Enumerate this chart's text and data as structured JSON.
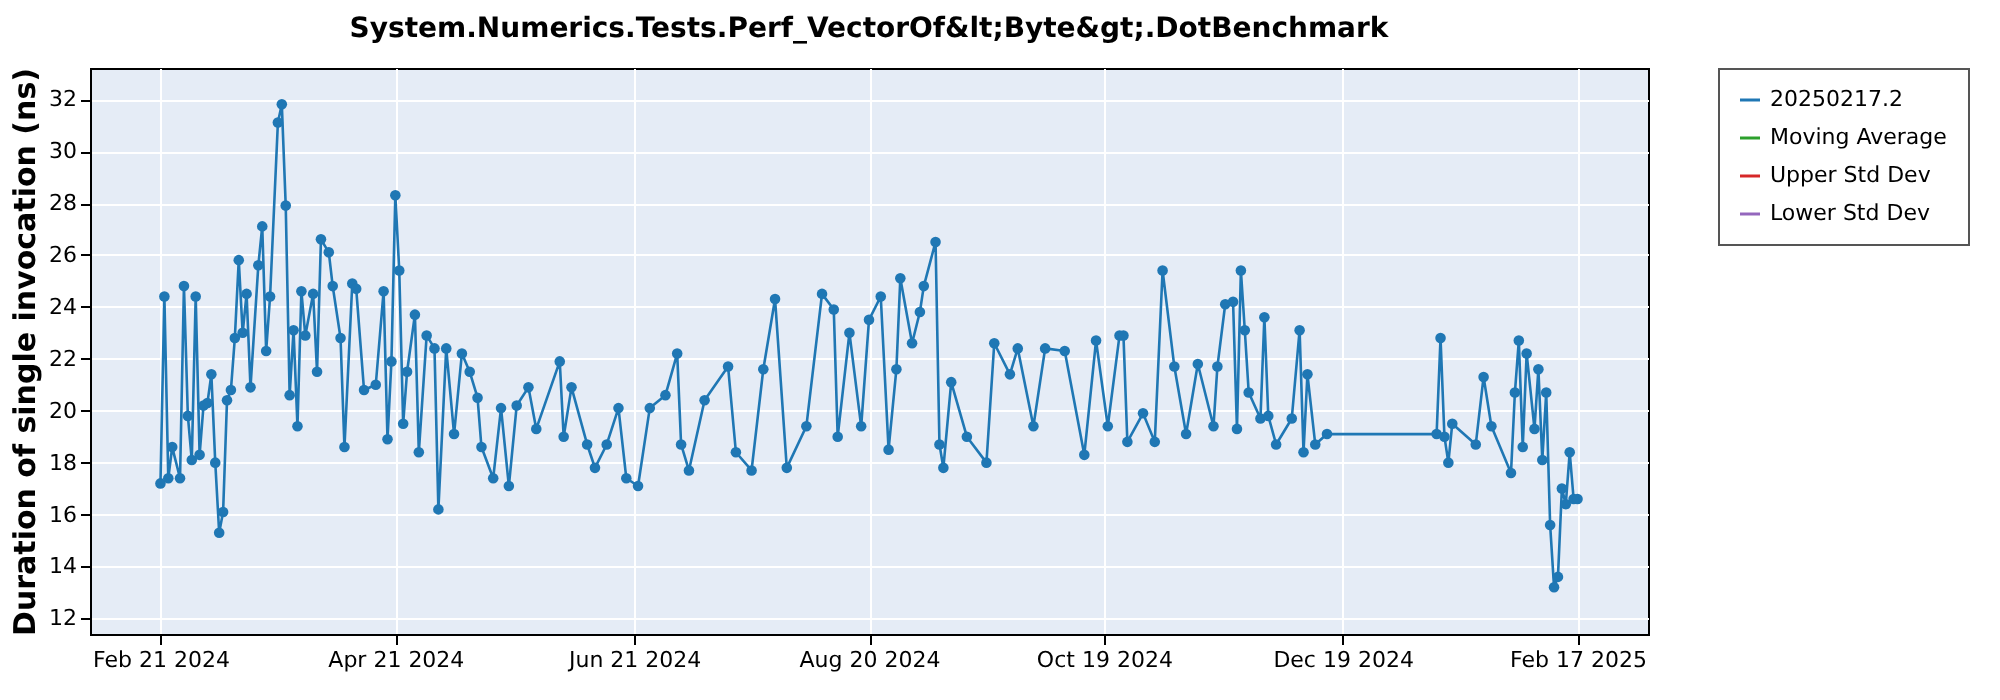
{
  "chart_data": {
    "type": "line",
    "title": "System.Numerics.Tests.Perf_VectorOf&lt;Byte&gt;.DotBenchmark",
    "ylabel": "Duration of single invocation (ns)",
    "x": [
      "2024-02-21",
      "2024-02-22",
      "2024-02-23",
      "2024-02-24",
      "2024-02-26",
      "2024-02-27",
      "2024-02-28",
      "2024-02-29",
      "2024-03-01",
      "2024-03-02",
      "2024-03-03",
      "2024-03-04",
      "2024-03-05",
      "2024-03-06",
      "2024-03-07",
      "2024-03-08",
      "2024-03-09",
      "2024-03-10",
      "2024-03-11",
      "2024-03-12",
      "2024-03-13",
      "2024-03-14",
      "2024-03-15",
      "2024-03-17",
      "2024-03-18",
      "2024-03-19",
      "2024-03-20",
      "2024-03-22",
      "2024-03-23",
      "2024-03-24",
      "2024-03-25",
      "2024-03-26",
      "2024-03-27",
      "2024-03-28",
      "2024-03-29",
      "2024-03-31",
      "2024-04-01",
      "2024-04-02",
      "2024-04-04",
      "2024-04-05",
      "2024-04-07",
      "2024-04-08",
      "2024-04-10",
      "2024-04-11",
      "2024-04-13",
      "2024-04-16",
      "2024-04-18",
      "2024-04-19",
      "2024-04-20",
      "2024-04-21",
      "2024-04-22",
      "2024-04-23",
      "2024-04-24",
      "2024-04-26",
      "2024-04-27",
      "2024-04-29",
      "2024-05-01",
      "2024-05-02",
      "2024-05-04",
      "2024-05-06",
      "2024-05-08",
      "2024-05-10",
      "2024-05-12",
      "2024-05-13",
      "2024-05-16",
      "2024-05-18",
      "2024-05-20",
      "2024-05-22",
      "2024-05-25",
      "2024-05-27",
      "2024-06-02",
      "2024-06-03",
      "2024-06-05",
      "2024-06-09",
      "2024-06-11",
      "2024-06-14",
      "2024-06-17",
      "2024-06-19",
      "2024-06-22",
      "2024-06-25",
      "2024-06-29",
      "2024-07-02",
      "2024-07-03",
      "2024-07-05",
      "2024-07-09",
      "2024-07-15",
      "2024-07-17",
      "2024-07-21",
      "2024-07-24",
      "2024-07-27",
      "2024-07-30",
      "2024-08-04",
      "2024-08-08",
      "2024-08-11",
      "2024-08-12",
      "2024-08-15",
      "2024-08-18",
      "2024-08-20",
      "2024-08-23",
      "2024-08-25",
      "2024-08-27",
      "2024-08-28",
      "2024-08-31",
      "2024-09-02",
      "2024-09-03",
      "2024-09-06",
      "2024-09-07",
      "2024-09-08",
      "2024-09-10",
      "2024-09-14",
      "2024-09-19",
      "2024-09-21",
      "2024-09-25",
      "2024-09-27",
      "2024-10-01",
      "2024-10-04",
      "2024-10-09",
      "2024-10-14",
      "2024-10-17",
      "2024-10-20",
      "2024-10-23",
      "2024-10-24",
      "2024-10-25",
      "2024-10-29",
      "2024-11-01",
      "2024-11-03",
      "2024-11-06",
      "2024-11-09",
      "2024-11-12",
      "2024-11-16",
      "2024-11-17",
      "2024-11-19",
      "2024-11-21",
      "2024-11-22",
      "2024-11-23",
      "2024-11-24",
      "2024-11-25",
      "2024-11-28",
      "2024-11-29",
      "2024-11-30",
      "2024-12-02",
      "2024-12-06",
      "2024-12-08",
      "2024-12-09",
      "2024-12-10",
      "2024-12-12",
      "2024-12-15",
      "2025-01-12",
      "2025-01-13",
      "2025-01-14",
      "2025-01-15",
      "2025-01-16",
      "2025-01-22",
      "2025-01-24",
      "2025-01-26",
      "2025-01-31",
      "2025-02-01",
      "2025-02-02",
      "2025-02-03",
      "2025-02-04",
      "2025-02-06",
      "2025-02-07",
      "2025-02-08",
      "2025-02-09",
      "2025-02-10",
      "2025-02-11",
      "2025-02-12",
      "2025-02-13",
      "2025-02-14",
      "2025-02-15",
      "2025-02-16",
      "2025-02-17"
    ],
    "series": [
      {
        "name": "20250217.2",
        "color": "#1f77b4",
        "values": [
          17.2,
          24.4,
          17.4,
          18.6,
          17.4,
          24.8,
          19.8,
          18.1,
          24.4,
          18.3,
          20.2,
          20.3,
          21.4,
          18.0,
          15.3,
          16.1,
          20.4,
          20.8,
          22.8,
          25.8,
          23.0,
          24.5,
          20.9,
          25.6,
          27.1,
          22.3,
          24.4,
          31.1,
          31.8,
          27.9,
          20.6,
          23.1,
          19.4,
          24.6,
          22.9,
          24.5,
          21.5,
          26.6,
          26.1,
          24.8,
          22.8,
          18.6,
          24.9,
          24.7,
          20.8,
          21.0,
          24.6,
          18.9,
          21.9,
          28.3,
          25.4,
          19.5,
          21.5,
          23.7,
          18.4,
          22.9,
          22.4,
          16.2,
          22.4,
          19.1,
          22.2,
          21.5,
          20.5,
          18.6,
          17.4,
          20.1,
          17.1,
          20.2,
          20.9,
          19.3,
          21.9,
          19.0,
          20.9,
          18.7,
          17.8,
          18.7,
          20.1,
          17.4,
          17.1,
          20.1,
          20.6,
          22.2,
          18.7,
          17.7,
          20.4,
          21.7,
          18.4,
          17.7,
          21.6,
          24.3,
          17.8,
          19.4,
          24.5,
          23.9,
          19.0,
          23.0,
          19.4,
          23.5,
          24.4,
          18.5,
          21.6,
          25.1,
          22.6,
          23.8,
          24.8,
          26.5,
          18.7,
          17.8,
          21.1,
          19.0,
          18.0,
          22.6,
          21.4,
          22.4,
          19.4,
          22.4,
          22.3,
          18.3,
          22.7,
          19.4,
          22.9,
          22.9,
          18.8,
          19.9,
          18.8,
          25.4,
          21.7,
          19.1,
          21.8,
          19.4,
          21.7,
          24.1,
          24.2,
          19.3,
          25.4,
          23.1,
          20.7,
          19.7,
          23.6,
          19.8,
          18.7,
          19.7,
          23.1,
          18.4,
          21.4,
          18.7,
          19.1,
          19.1,
          22.8,
          19.0,
          18.0,
          19.5,
          18.7,
          21.3,
          19.4,
          17.6,
          20.7,
          22.7,
          18.6,
          22.2,
          19.3,
          21.6,
          18.1,
          20.7,
          15.6,
          13.2,
          13.6,
          17.0,
          16.4,
          18.4,
          16.6,
          16.6
        ]
      },
      {
        "name": "Moving Average",
        "color": "#2ca02c",
        "values": [
          null,
          null,
          null,
          null,
          null,
          null,
          null,
          null,
          null,
          null,
          null,
          null,
          null,
          null,
          null,
          null,
          null,
          null,
          null,
          null,
          null,
          null,
          null,
          null,
          null,
          null,
          null,
          null,
          null,
          null,
          null,
          null,
          null,
          null,
          null,
          null,
          null,
          null,
          null,
          null,
          null,
          null,
          null,
          null,
          null,
          null,
          null,
          null,
          null,
          null,
          null,
          null,
          null,
          null,
          null,
          null,
          null,
          null,
          null,
          null,
          null,
          null,
          null,
          null,
          null,
          null,
          null,
          null,
          null,
          null,
          null,
          null,
          null,
          null,
          null,
          null,
          null,
          null,
          null,
          null,
          null,
          null,
          null,
          null,
          null,
          null,
          null,
          null,
          null,
          null,
          null,
          null,
          null,
          null,
          null,
          null,
          null,
          null,
          null,
          null,
          null,
          null,
          null,
          null,
          null,
          null,
          null,
          null,
          null,
          null,
          null,
          null,
          null,
          null,
          null,
          null,
          null,
          null,
          null,
          null,
          null,
          null,
          null,
          null,
          null,
          null,
          null,
          null,
          null,
          null,
          null,
          null,
          null,
          null,
          null,
          null,
          null,
          null,
          null,
          null,
          null,
          null,
          null,
          null,
          null,
          null,
          null,
          null,
          null,
          null,
          null,
          null,
          null,
          null,
          null,
          null,
          null,
          null,
          null,
          null,
          null,
          null,
          null,
          null,
          null,
          null,
          null,
          null,
          null,
          null,
          null,
          null
        ]
      },
      {
        "name": "Upper Std Dev",
        "color": "#d62728",
        "values": [
          null,
          null,
          null,
          null,
          null,
          null,
          null,
          null,
          null,
          null,
          null,
          null,
          null,
          null,
          null,
          null,
          null,
          null,
          null,
          null,
          null,
          null,
          null,
          null,
          null,
          null,
          null,
          null,
          null,
          null,
          null,
          null,
          null,
          null,
          null,
          null,
          null,
          null,
          null,
          null,
          null,
          null,
          null,
          null,
          null,
          null,
          null,
          null,
          null,
          null,
          null,
          null,
          null,
          null,
          null,
          null,
          null,
          null,
          null,
          null,
          null,
          null,
          null,
          null,
          null,
          null,
          null,
          null,
          null,
          null,
          null,
          null,
          null,
          null,
          null,
          null,
          null,
          null,
          null,
          null,
          null,
          null,
          null,
          null,
          null,
          null,
          null,
          null,
          null,
          null,
          null,
          null,
          null,
          null,
          null,
          null,
          null,
          null,
          null,
          null,
          null,
          null,
          null,
          null,
          null,
          null,
          null,
          null,
          null,
          null,
          null,
          null,
          null,
          null,
          null,
          null,
          null,
          null,
          null,
          null,
          null,
          null,
          null,
          null,
          null,
          null,
          null,
          null,
          null,
          null,
          null,
          null,
          null,
          null,
          null,
          null,
          null,
          null,
          null,
          null,
          null,
          null,
          null,
          null,
          null,
          null,
          null,
          null,
          null,
          null,
          null,
          null,
          null,
          null,
          null,
          null,
          null,
          null,
          null,
          null,
          null,
          null,
          null,
          null,
          null,
          null,
          null,
          null,
          null,
          null,
          null,
          null
        ]
      },
      {
        "name": "Lower Std Dev",
        "color": "#9467bd",
        "values": [
          null,
          null,
          null,
          null,
          null,
          null,
          null,
          null,
          null,
          null,
          null,
          null,
          null,
          null,
          null,
          null,
          null,
          null,
          null,
          null,
          null,
          null,
          null,
          null,
          null,
          null,
          null,
          null,
          null,
          null,
          null,
          null,
          null,
          null,
          null,
          null,
          null,
          null,
          null,
          null,
          null,
          null,
          null,
          null,
          null,
          null,
          null,
          null,
          null,
          null,
          null,
          null,
          null,
          null,
          null,
          null,
          null,
          null,
          null,
          null,
          null,
          null,
          null,
          null,
          null,
          null,
          null,
          null,
          null,
          null,
          null,
          null,
          null,
          null,
          null,
          null,
          null,
          null,
          null,
          null,
          null,
          null,
          null,
          null,
          null,
          null,
          null,
          null,
          null,
          null,
          null,
          null,
          null,
          null,
          null,
          null,
          null,
          null,
          null,
          null,
          null,
          null,
          null,
          null,
          null,
          null,
          null,
          null,
          null,
          null,
          null,
          null,
          null,
          null,
          null,
          null,
          null,
          null,
          null,
          null,
          null,
          null,
          null,
          null,
          null,
          null,
          null,
          null,
          null,
          null,
          null,
          null,
          null,
          null,
          null,
          null,
          null,
          null,
          null,
          null,
          null,
          null,
          null,
          null,
          null,
          null,
          null,
          null,
          null,
          null,
          null,
          null,
          null,
          null,
          null,
          null,
          null,
          null,
          null,
          null,
          null,
          null,
          null,
          null,
          null,
          null,
          null,
          null,
          null,
          null,
          null,
          null
        ]
      }
    ],
    "xlim": [
      "2024-02-03",
      "2025-03-07"
    ],
    "xticks": [
      {
        "value": "2024-02-21",
        "label": "Feb 21 2024"
      },
      {
        "value": "2024-04-21",
        "label": "Apr 21 2024"
      },
      {
        "value": "2024-06-21",
        "label": "Jun 21 2024"
      },
      {
        "value": "2024-08-20",
        "label": "Aug 20 2024"
      },
      {
        "value": "2024-10-19",
        "label": "Oct 19 2024"
      },
      {
        "value": "2024-12-19",
        "label": "Dec 19 2024"
      },
      {
        "value": "2025-02-17",
        "label": "Feb 17 2025"
      }
    ],
    "ylim": [
      11.4,
      33.2
    ],
    "yticks": [
      12,
      14,
      16,
      18,
      20,
      22,
      24,
      26,
      28,
      30,
      32
    ],
    "grid": true,
    "legend": "right",
    "marker": "circle",
    "line_style": "solid"
  }
}
